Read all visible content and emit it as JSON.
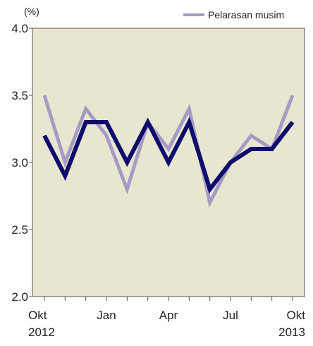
{
  "chart_data": {
    "type": "line",
    "title": "",
    "unit_label": "(%)",
    "xlabel": "",
    "ylabel": "",
    "ylim": [
      2.0,
      4.0
    ],
    "yticks": [
      "2.0",
      "2.5",
      "3.0",
      "3.5",
      "4.0"
    ],
    "x": [
      "Okt 2012",
      "Nov 2012",
      "Des 2012",
      "Jan 2013",
      "Feb 2013",
      "Mar 2013",
      "Apr 2013",
      "Mei 2013",
      "Jun 2013",
      "Jul 2013",
      "Agu 2013",
      "Sep 2013",
      "Okt 2013"
    ],
    "x_tick_labels": [
      {
        "index": 0,
        "line1": "Okt",
        "line2": "2012"
      },
      {
        "index": 3,
        "line1": "Jan",
        "line2": ""
      },
      {
        "index": 6,
        "line1": "Apr",
        "line2": ""
      },
      {
        "index": 9,
        "line1": "Jul",
        "line2": ""
      },
      {
        "index": 12,
        "line1": "Okt",
        "line2": "2013"
      }
    ],
    "grid": false,
    "legend_position": "top-right",
    "background_color": "#e8e6cf",
    "series": [
      {
        "name": "",
        "color": "#0d0d6b",
        "values": [
          3.2,
          2.9,
          3.3,
          3.3,
          3.0,
          3.3,
          3.0,
          3.3,
          2.8,
          3.0,
          3.1,
          3.1,
          3.3
        ]
      },
      {
        "name": "Pelarasan musim",
        "color": "#a69bc4",
        "values": [
          3.5,
          3.0,
          3.4,
          3.2,
          2.8,
          3.3,
          3.1,
          3.4,
          2.7,
          3.0,
          3.2,
          3.1,
          3.5
        ]
      }
    ]
  }
}
